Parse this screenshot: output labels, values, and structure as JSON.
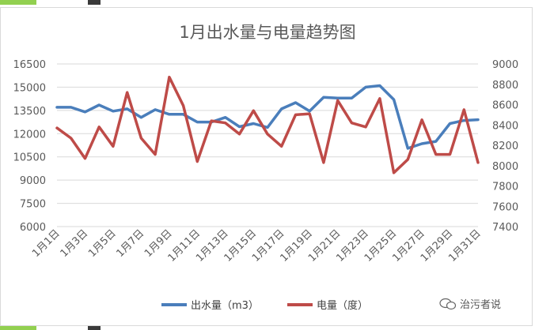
{
  "chart_data": {
    "type": "line",
    "title": "1月出水量与电量趋势图",
    "categories": [
      "1月1日",
      "1月2日",
      "1月3日",
      "1月4日",
      "1月5日",
      "1月6日",
      "1月7日",
      "1月8日",
      "1月9日",
      "1月10日",
      "1月11日",
      "1月12日",
      "1月13日",
      "1月14日",
      "1月15日",
      "1月16日",
      "1月17日",
      "1月18日",
      "1月19日",
      "1月20日",
      "1月21日",
      "1月22日",
      "1月23日",
      "1月24日",
      "1月25日",
      "1月26日",
      "1月27日",
      "1月28日",
      "1月29日",
      "1月30日",
      "1月31日"
    ],
    "x_tick_labels": [
      "1月1日",
      "1月3日",
      "1月5日",
      "1月7日",
      "1月9日",
      "1月11日",
      "1月13日",
      "1月15日",
      "1月17日",
      "1月19日",
      "1月21日",
      "1月23日",
      "1月25日",
      "1月27日",
      "1月29日",
      "1月31日"
    ],
    "series": [
      {
        "name": "出水量（m3）",
        "axis": "left",
        "color": "#4a7ebb",
        "values": [
          13700,
          13700,
          13400,
          13850,
          13450,
          13600,
          13050,
          13550,
          13250,
          13250,
          12750,
          12750,
          13050,
          12450,
          12650,
          12400,
          13600,
          14000,
          13450,
          14350,
          14300,
          14300,
          15000,
          15100,
          14200,
          11050,
          11350,
          11500,
          12650,
          12850,
          12900
        ]
      },
      {
        "name": "电量（度）",
        "axis": "right",
        "color": "#be4b48",
        "values": [
          8370,
          8270,
          8070,
          8380,
          8190,
          8720,
          8270,
          8110,
          8870,
          8590,
          8040,
          8440,
          8420,
          8310,
          8540,
          8310,
          8190,
          8500,
          8510,
          8030,
          8640,
          8420,
          8380,
          8660,
          7930,
          8060,
          8450,
          8110,
          8110,
          8550,
          8030
        ]
      }
    ],
    "y_left": {
      "min": 6000,
      "max": 16500,
      "ticks": [
        "6000",
        "7500",
        "9000",
        "10500",
        "12000",
        "13500",
        "15000",
        "16500"
      ]
    },
    "y_right": {
      "min": 7400,
      "max": 9000,
      "ticks": [
        "7400",
        "7600",
        "7800",
        "8000",
        "8200",
        "8400",
        "8600",
        "8800",
        "9000"
      ]
    },
    "grid": "horizontal",
    "legend": "bottom-center"
  },
  "legend": {
    "water_label": "出水量（m3）",
    "power_label": "电量（度）"
  },
  "watermark": {
    "text": "治污者说",
    "icon": "wechat-bubble-icon"
  }
}
